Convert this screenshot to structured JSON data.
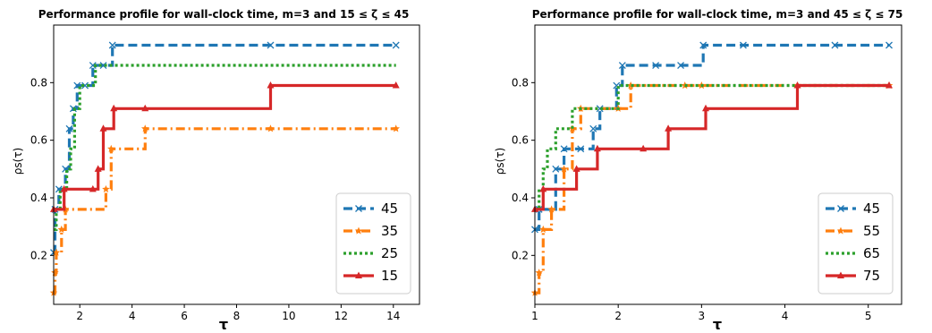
{
  "chart_data": [
    {
      "type": "line",
      "step": true,
      "title": "Performance profile for wall-clock time, m=3 and 15 ≤ ζ ≤ 45",
      "xlabel": "τ",
      "ylabel": "ρs(τ)",
      "xlim": [
        1.0,
        15.0
      ],
      "ylim": [
        0.03,
        1.0
      ],
      "xticks": [
        2,
        4,
        6,
        8,
        10,
        12,
        14
      ],
      "yticks": [
        0.2,
        0.4,
        0.6,
        0.8
      ],
      "grid": false,
      "legend_position": "bottom-right",
      "series": [
        {
          "name": "45",
          "color": "#1f77b4",
          "dash": "dashed",
          "marker": "x",
          "x": [
            1.0,
            1.05,
            1.2,
            1.45,
            1.6,
            1.75,
            1.9,
            2.2,
            2.5,
            2.9,
            3.25,
            9.3,
            14.1
          ],
          "y": [
            0.21,
            0.36,
            0.43,
            0.5,
            0.64,
            0.71,
            0.79,
            0.79,
            0.86,
            0.86,
            0.93,
            0.93,
            0.93
          ]
        },
        {
          "name": "35",
          "color": "#ff7f0e",
          "dash": "dashdot",
          "marker": "*",
          "x": [
            1.0,
            1.05,
            1.1,
            1.3,
            1.45,
            3.0,
            3.2,
            4.5,
            9.3,
            14.1
          ],
          "y": [
            0.07,
            0.14,
            0.21,
            0.29,
            0.36,
            0.43,
            0.57,
            0.64,
            0.64,
            0.64
          ]
        },
        {
          "name": "25",
          "color": "#2ca02c",
          "dash": "dotted",
          "marker": "",
          "x": [
            1.0,
            1.1,
            1.25,
            1.5,
            1.65,
            1.8,
            2.0,
            2.3,
            2.6,
            2.8,
            3.3,
            14.1
          ],
          "y": [
            0.29,
            0.36,
            0.43,
            0.5,
            0.57,
            0.71,
            0.79,
            0.79,
            0.86,
            0.86,
            0.86,
            0.86
          ]
        },
        {
          "name": "15",
          "color": "#d62728",
          "dash": "solid",
          "marker": "^",
          "x": [
            1.0,
            1.4,
            2.5,
            2.7,
            2.9,
            3.3,
            4.5,
            9.3,
            14.1
          ],
          "y": [
            0.36,
            0.43,
            0.43,
            0.5,
            0.64,
            0.71,
            0.71,
            0.79,
            0.79
          ]
        }
      ]
    },
    {
      "type": "line",
      "step": true,
      "title": "Performance profile for wall-clock time, m=3 and 45 ≤ ζ ≤ 75",
      "xlabel": "τ",
      "ylabel": "ρs(τ)",
      "xlim": [
        1.0,
        5.4
      ],
      "ylim": [
        0.03,
        1.0
      ],
      "xticks": [
        1,
        2,
        3,
        4,
        5
      ],
      "yticks": [
        0.2,
        0.4,
        0.6,
        0.8
      ],
      "grid": false,
      "legend_position": "bottom-right",
      "series": [
        {
          "name": "45",
          "color": "#1f77b4",
          "dash": "dashed",
          "marker": "x",
          "x": [
            1.0,
            1.05,
            1.25,
            1.35,
            1.55,
            1.7,
            1.78,
            1.98,
            2.05,
            2.45,
            2.75,
            3.02,
            3.5,
            4.6,
            5.25
          ],
          "y": [
            0.29,
            0.36,
            0.5,
            0.57,
            0.57,
            0.64,
            0.71,
            0.79,
            0.86,
            0.86,
            0.86,
            0.93,
            0.93,
            0.93,
            0.93
          ]
        },
        {
          "name": "55",
          "color": "#ff7f0e",
          "dash": "dashdot",
          "marker": "*",
          "x": [
            1.0,
            1.05,
            1.1,
            1.2,
            1.35,
            1.45,
            1.55,
            2.0,
            2.15,
            2.8,
            3.0,
            5.25
          ],
          "y": [
            0.07,
            0.14,
            0.29,
            0.36,
            0.5,
            0.64,
            0.71,
            0.71,
            0.79,
            0.79,
            0.79,
            0.79
          ]
        },
        {
          "name": "65",
          "color": "#2ca02c",
          "dash": "dotted",
          "marker": "",
          "x": [
            1.0,
            1.05,
            1.1,
            1.15,
            1.25,
            1.45,
            2.0,
            3.0,
            5.25
          ],
          "y": [
            0.36,
            0.43,
            0.5,
            0.57,
            0.64,
            0.71,
            0.79,
            0.79,
            0.79
          ]
        },
        {
          "name": "75",
          "color": "#d62728",
          "dash": "solid",
          "marker": "^",
          "x": [
            1.0,
            1.1,
            1.5,
            1.75,
            2.3,
            2.6,
            3.05,
            4.15,
            5.25
          ],
          "y": [
            0.36,
            0.43,
            0.5,
            0.57,
            0.57,
            0.64,
            0.71,
            0.79,
            0.79
          ]
        }
      ]
    }
  ]
}
